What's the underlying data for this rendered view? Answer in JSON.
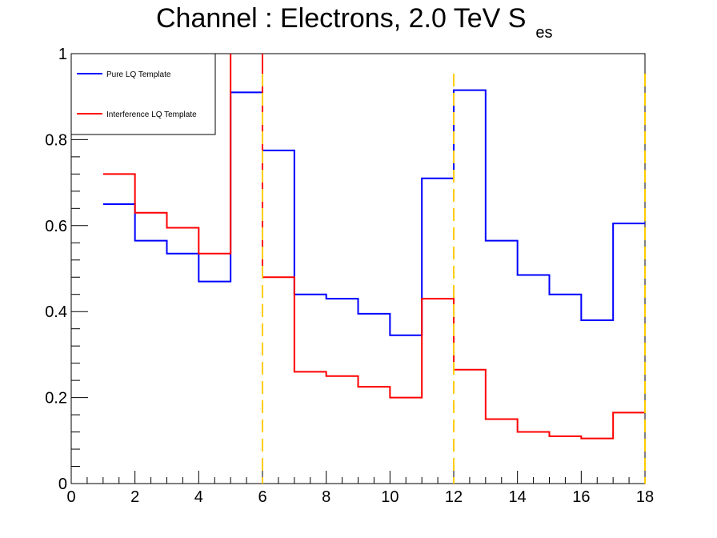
{
  "chart_data": {
    "type": "line",
    "step": true,
    "title": "Channel : Electrons, 2.0 TeV S",
    "title_subscript": "es",
    "xlabel": "",
    "ylabel": "",
    "xlim": [
      0,
      18
    ],
    "ylim": [
      0,
      1
    ],
    "x_ticks": [
      "0",
      "2",
      "4",
      "6",
      "8",
      "10",
      "12",
      "14",
      "16",
      "18"
    ],
    "y_ticks": [
      "0",
      "0.2",
      "0.4",
      "0.6",
      "0.8",
      "1"
    ],
    "bin_edges": [
      1,
      2,
      3,
      4,
      5,
      6,
      7,
      8,
      9,
      10,
      11,
      12,
      13,
      14,
      15,
      16,
      17,
      18
    ],
    "series": [
      {
        "name": "Pure LQ Template",
        "color": "#0000ff",
        "values": [
          0.65,
          0.565,
          0.535,
          0.47,
          0.91,
          0.775,
          0.44,
          0.43,
          0.395,
          0.345,
          0.71,
          0.915,
          0.565,
          0.485,
          0.44,
          0.38,
          0.605
        ]
      },
      {
        "name": "Interference LQ Template",
        "color": "#ff0000",
        "values": [
          0.72,
          0.63,
          0.595,
          0.535,
          1.05,
          0.48,
          0.26,
          0.25,
          0.225,
          0.2,
          0.43,
          0.265,
          0.15,
          0.12,
          0.11,
          0.105,
          0.165
        ]
      }
    ],
    "vertical_lines": {
      "color": "#ffcc00",
      "style": "dashed",
      "x": [
        6,
        12,
        18
      ]
    },
    "legend": {
      "placement": "top-left"
    },
    "grid": false
  }
}
